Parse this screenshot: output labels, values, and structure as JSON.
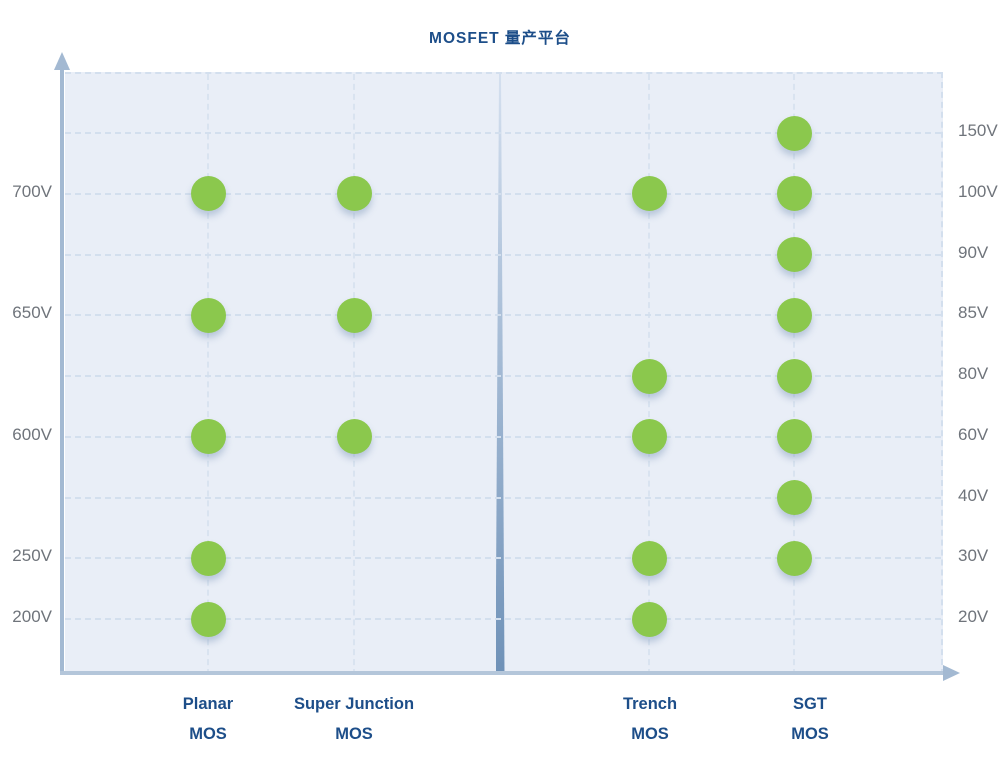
{
  "title": {
    "text": "MOSFET 量产平台"
  },
  "chart_data": {
    "type": "scatter",
    "title": "MOSFET 量产平台",
    "legend": "none",
    "grid": "dashed horizontal gridlines with dashed vertical column guides; tapered vertical divider splits low-voltage and high-voltage halves",
    "columns": [
      {
        "id": "planar",
        "label": "Planar",
        "sublabel": "MOS"
      },
      {
        "id": "super_junction",
        "label": "Super Junction",
        "sublabel": "MOS"
      },
      {
        "id": "trench",
        "label": "Trench",
        "sublabel": "MOS"
      },
      {
        "id": "sgt",
        "label": "SGT",
        "sublabel": "MOS"
      }
    ],
    "rows": [
      {
        "left_label": "",
        "right_label": "150V",
        "dots": [
          "sgt"
        ]
      },
      {
        "left_label": "700V",
        "right_label": "100V",
        "dots": [
          "planar",
          "super_junction",
          "trench",
          "sgt"
        ]
      },
      {
        "left_label": "",
        "right_label": "90V",
        "dots": [
          "sgt"
        ]
      },
      {
        "left_label": "650V",
        "right_label": "85V",
        "dots": [
          "planar",
          "super_junction",
          "sgt"
        ]
      },
      {
        "left_label": "",
        "right_label": "80V",
        "dots": [
          "trench",
          "sgt"
        ]
      },
      {
        "left_label": "600V",
        "right_label": "60V",
        "dots": [
          "planar",
          "super_junction",
          "trench",
          "sgt"
        ]
      },
      {
        "left_label": "",
        "right_label": "40V",
        "dots": [
          "sgt"
        ]
      },
      {
        "left_label": "250V",
        "right_label": "30V",
        "dots": [
          "planar",
          "trench",
          "sgt"
        ]
      },
      {
        "left_label": "200V",
        "right_label": "20V",
        "dots": [
          "planar",
          "trench"
        ]
      }
    ],
    "platform_voltages": {
      "planar": [
        "700V",
        "650V",
        "600V",
        "250V",
        "200V"
      ],
      "super_junction": [
        "700V",
        "650V",
        "600V"
      ],
      "trench": [
        "100V",
        "80V",
        "60V",
        "30V",
        "20V"
      ],
      "sgt": [
        "150V",
        "100V",
        "90V",
        "85V",
        "80V",
        "60V",
        "40V",
        "30V"
      ]
    }
  },
  "colors": {
    "dot": "#8bc84d",
    "title_text": "#1d4e89",
    "category_text": "#1d4e89",
    "axis_label_text": "#6f747b",
    "plot_background": "#e9eef7",
    "axis_line": "#a3b9d2",
    "gridline": "#d3dfee",
    "divider": "#6f94bb"
  }
}
